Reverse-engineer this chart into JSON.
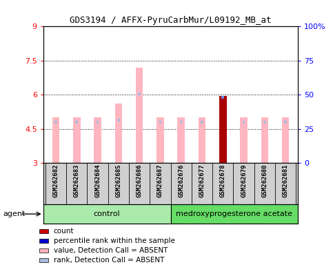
{
  "title": "GDS3194 / AFFX-PyruCarbMur/L09192_MB_at",
  "samples": [
    "GSM262682",
    "GSM262683",
    "GSM262684",
    "GSM262685",
    "GSM262686",
    "GSM262687",
    "GSM262676",
    "GSM262677",
    "GSM262678",
    "GSM262679",
    "GSM262680",
    "GSM262681"
  ],
  "control_count": 6,
  "ylim": [
    3,
    9
  ],
  "yticks": [
    3,
    4.5,
    6,
    7.5,
    9
  ],
  "ytick_labels": [
    "3",
    "4.5",
    "6",
    "7.5",
    "9"
  ],
  "right_yticks": [
    0,
    25,
    50,
    75,
    100
  ],
  "right_ytick_labels": [
    "0",
    "25",
    "50",
    "75",
    "100%"
  ],
  "pink_values": [
    5.0,
    5.0,
    5.0,
    5.6,
    7.2,
    5.0,
    5.0,
    5.0,
    5.95,
    5.0,
    5.0,
    5.0
  ],
  "blue_values": [
    4.8,
    4.8,
    4.8,
    4.9,
    6.05,
    4.8,
    4.8,
    4.8,
    5.88,
    4.8,
    4.8,
    4.8
  ],
  "red_index": 8,
  "bar_bottom": 3,
  "pink_color": "#FFB6C1",
  "blue_color": "#6688EE",
  "red_color": "#AA0000",
  "light_blue_color": "#AABBDD",
  "group1_color": "#AAEAAA",
  "group2_color": "#66DD66",
  "sample_bg_color": "#D0D0D0",
  "legend_items": [
    {
      "color": "#CC0000",
      "label": "count"
    },
    {
      "color": "#0000CC",
      "label": "percentile rank within the sample"
    },
    {
      "color": "#FFB6C1",
      "label": "value, Detection Call = ABSENT"
    },
    {
      "color": "#AABBDD",
      "label": "rank, Detection Call = ABSENT"
    }
  ]
}
